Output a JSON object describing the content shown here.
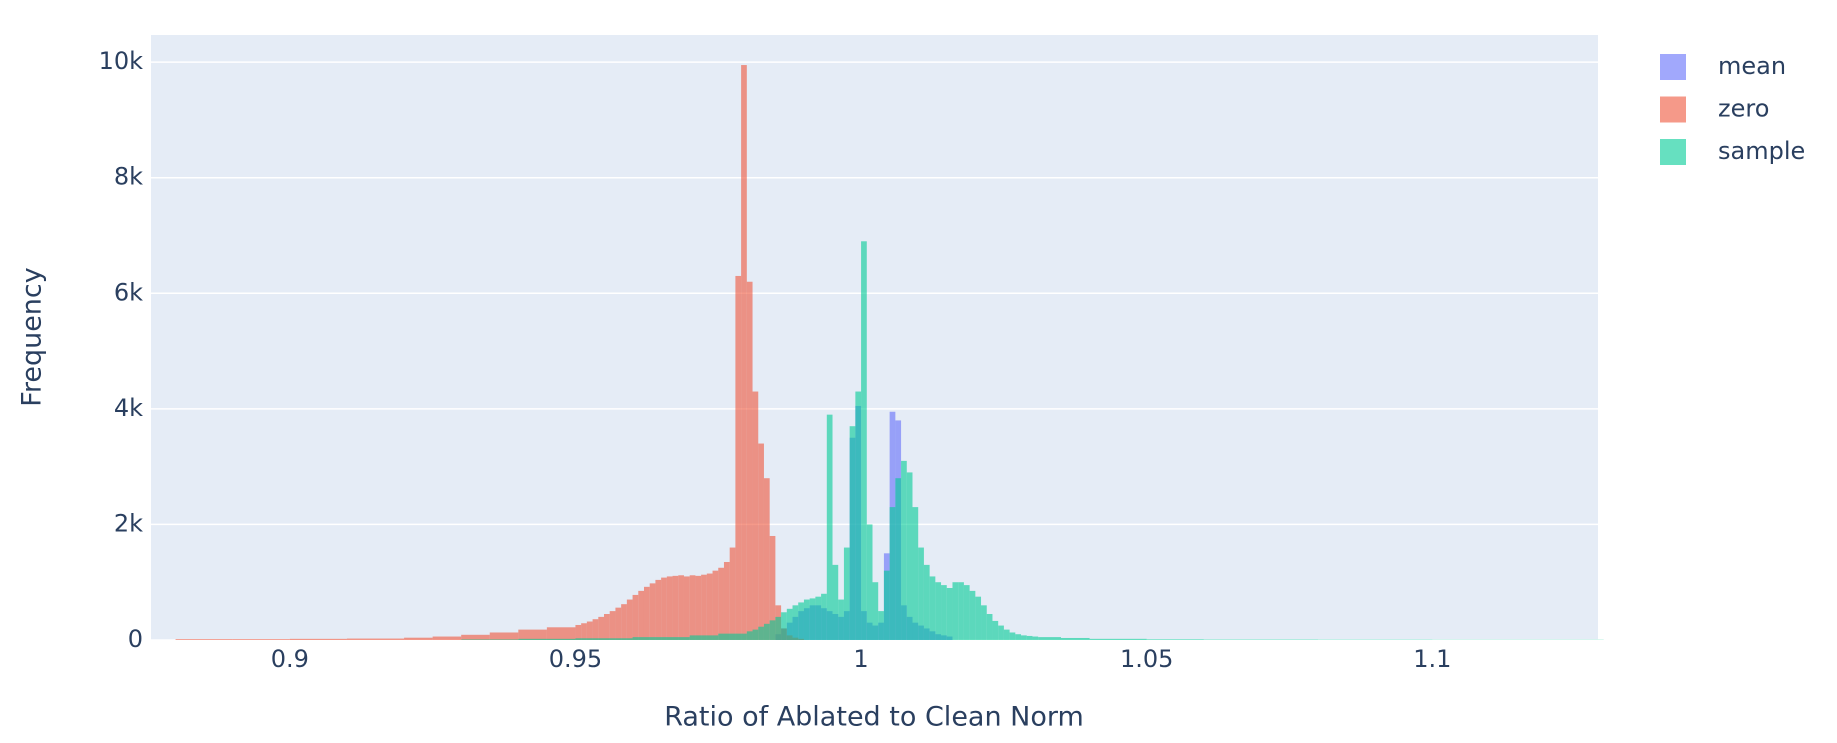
{
  "chart_data": {
    "type": "histogram",
    "barmode": "overlay",
    "opacity": 0.6,
    "x_label": "Ratio of Ablated to Clean Norm",
    "y_label": "Frequency",
    "xlim": [
      0.8757,
      1.129
    ],
    "ylim": [
      0,
      10470
    ],
    "xticks": [
      0.9,
      0.95,
      1,
      1.05,
      1.1
    ],
    "yticks": [
      0,
      {
        "value": 2000,
        "label": "2k"
      },
      {
        "value": 4000,
        "label": "4k"
      },
      {
        "value": 6000,
        "label": "6k"
      },
      {
        "value": 8000,
        "label": "8k"
      },
      {
        "value": 10000,
        "label": "10k"
      }
    ],
    "grid": "y",
    "legend": "top-right",
    "series": [
      {
        "name": "mean",
        "color": "#636efa",
        "bins": [
          0.985,
          0.986,
          0.987,
          0.988,
          0.989,
          0.99,
          0.991,
          0.992,
          0.993,
          0.994,
          0.995,
          0.996,
          0.997,
          0.998,
          0.999,
          1.0,
          1.001,
          1.002,
          1.003,
          1.004,
          1.005,
          1.006,
          1.007,
          1.008,
          1.009,
          1.01,
          1.011,
          1.012,
          1.013,
          1.014,
          1.015,
          1.016
        ],
        "values": [
          100,
          200,
          300,
          400,
          500,
          550,
          600,
          600,
          550,
          500,
          450,
          400,
          500,
          3500,
          4050,
          500,
          300,
          250,
          300,
          1500,
          3950,
          3800,
          600,
          400,
          300,
          250,
          200,
          150,
          100,
          80,
          60
        ]
      },
      {
        "name": "zero",
        "color": "#EF553B",
        "bins": [
          0.88,
          0.89,
          0.9,
          0.91,
          0.92,
          0.925,
          0.93,
          0.935,
          0.94,
          0.945,
          0.95,
          0.951,
          0.952,
          0.953,
          0.954,
          0.955,
          0.956,
          0.957,
          0.958,
          0.959,
          0.96,
          0.961,
          0.962,
          0.963,
          0.964,
          0.965,
          0.966,
          0.967,
          0.968,
          0.969,
          0.97,
          0.971,
          0.972,
          0.973,
          0.974,
          0.975,
          0.976,
          0.977,
          0.978,
          0.979,
          0.98,
          0.981,
          0.982,
          0.983,
          0.984,
          0.985,
          0.986,
          0.987,
          0.988,
          0.989,
          0.99
        ],
        "values": [
          15,
          15,
          20,
          25,
          40,
          60,
          90,
          130,
          180,
          220,
          260,
          290,
          320,
          360,
          400,
          450,
          500,
          560,
          620,
          700,
          780,
          850,
          920,
          980,
          1040,
          1080,
          1100,
          1110,
          1120,
          1100,
          1120,
          1110,
          1130,
          1150,
          1200,
          1250,
          1350,
          1600,
          6300,
          9950,
          6200,
          4300,
          3400,
          2800,
          1800,
          600,
          200,
          80,
          40,
          20
        ]
      },
      {
        "name": "sample",
        "color": "#00cc96",
        "bins": [
          0.93,
          0.94,
          0.95,
          0.96,
          0.97,
          0.975,
          0.98,
          0.981,
          0.982,
          0.983,
          0.984,
          0.985,
          0.986,
          0.987,
          0.988,
          0.989,
          0.99,
          0.991,
          0.992,
          0.993,
          0.994,
          0.995,
          0.996,
          0.997,
          0.998,
          0.999,
          1.0,
          1.001,
          1.002,
          1.003,
          1.004,
          1.005,
          1.006,
          1.007,
          1.008,
          1.009,
          1.01,
          1.011,
          1.012,
          1.013,
          1.014,
          1.015,
          1.016,
          1.017,
          1.018,
          1.019,
          1.02,
          1.021,
          1.022,
          1.023,
          1.024,
          1.025,
          1.026,
          1.027,
          1.028,
          1.029,
          1.03,
          1.031,
          1.035,
          1.04,
          1.05,
          1.06,
          1.08,
          1.1,
          1.13
        ],
        "values": [
          10,
          20,
          30,
          50,
          80,
          110,
          150,
          180,
          230,
          280,
          340,
          400,
          480,
          540,
          600,
          650,
          700,
          720,
          750,
          800,
          3900,
          1300,
          700,
          1600,
          3700,
          4300,
          6900,
          2000,
          1000,
          500,
          1200,
          2300,
          2800,
          3100,
          2900,
          2300,
          1600,
          1300,
          1100,
          1000,
          950,
          900,
          1000,
          1000,
          950,
          850,
          750,
          600,
          450,
          330,
          250,
          180,
          130,
          100,
          80,
          70,
          60,
          50,
          35,
          20,
          12,
          8,
          6,
          4
        ]
      }
    ]
  }
}
